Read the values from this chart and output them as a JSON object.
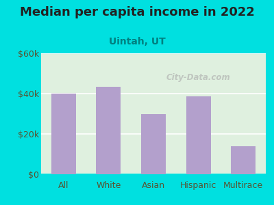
{
  "title": "Median per capita income in 2022",
  "subtitle": "Uintah, UT",
  "categories": [
    "All",
    "White",
    "Asian",
    "Hispanic",
    "Multirace"
  ],
  "values": [
    40000,
    43500,
    30000,
    38500,
    14000
  ],
  "bar_color": "#b3a0cc",
  "title_fontsize": 13,
  "subtitle_fontsize": 10,
  "subtitle_color": "#008080",
  "title_color": "#222222",
  "tick_label_color": "#555533",
  "background_outer": "#00e0e0",
  "background_inner": "#dff0df",
  "ylim": [
    0,
    60000
  ],
  "yticks": [
    0,
    20000,
    40000,
    60000
  ],
  "ytick_labels": [
    "$0",
    "$20k",
    "$40k",
    "$60k"
  ],
  "watermark": "City-Data.com"
}
